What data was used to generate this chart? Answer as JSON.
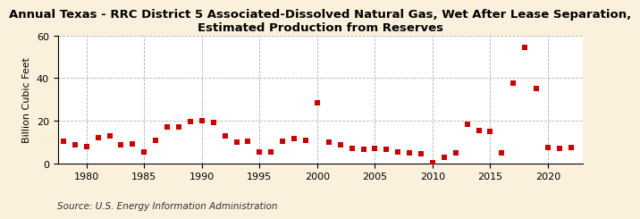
{
  "title": "Annual Texas - RRC District 5 Associated-Dissolved Natural Gas, Wet After Lease Separation,\nEstimated Production from Reserves",
  "ylabel": "Billion Cubic Feet",
  "source": "Source: U.S. Energy Information Administration",
  "years": [
    1978,
    1979,
    1980,
    1981,
    1982,
    1983,
    1984,
    1985,
    1986,
    1987,
    1988,
    1989,
    1990,
    1991,
    1992,
    1993,
    1994,
    1995,
    1996,
    1997,
    1998,
    1999,
    2000,
    2001,
    2002,
    2003,
    2004,
    2005,
    2006,
    2007,
    2008,
    2009,
    2010,
    2011,
    2012,
    2013,
    2014,
    2015,
    2016,
    2017,
    2018,
    2019,
    2020,
    2021,
    2022
  ],
  "values": [
    10.5,
    8.5,
    8.0,
    12.0,
    13.0,
    8.5,
    9.0,
    5.5,
    11.0,
    17.0,
    17.0,
    19.5,
    20.0,
    19.0,
    13.0,
    10.0,
    10.5,
    5.5,
    5.5,
    10.5,
    11.5,
    11.0,
    28.5,
    10.0,
    8.5,
    7.0,
    6.5,
    7.0,
    6.5,
    5.5,
    5.0,
    4.5,
    0.5,
    3.0,
    5.0,
    18.5,
    15.5,
    15.0,
    5.0,
    37.5,
    54.5,
    35.0,
    7.5,
    7.0,
    7.5
  ],
  "marker_color": "#CC0000",
  "marker_size": 16,
  "background_color": "#FAF0DC",
  "plot_bg_color": "#FFFFFF",
  "grid_color": "#AAAAAA",
  "xlim": [
    1977.5,
    2023
  ],
  "ylim": [
    0,
    60
  ],
  "yticks": [
    0,
    20,
    40,
    60
  ],
  "xticks": [
    1980,
    1985,
    1990,
    1995,
    2000,
    2005,
    2010,
    2015,
    2020
  ],
  "title_fontsize": 9.5,
  "ylabel_fontsize": 8,
  "tick_fontsize": 8,
  "source_fontsize": 7.5
}
